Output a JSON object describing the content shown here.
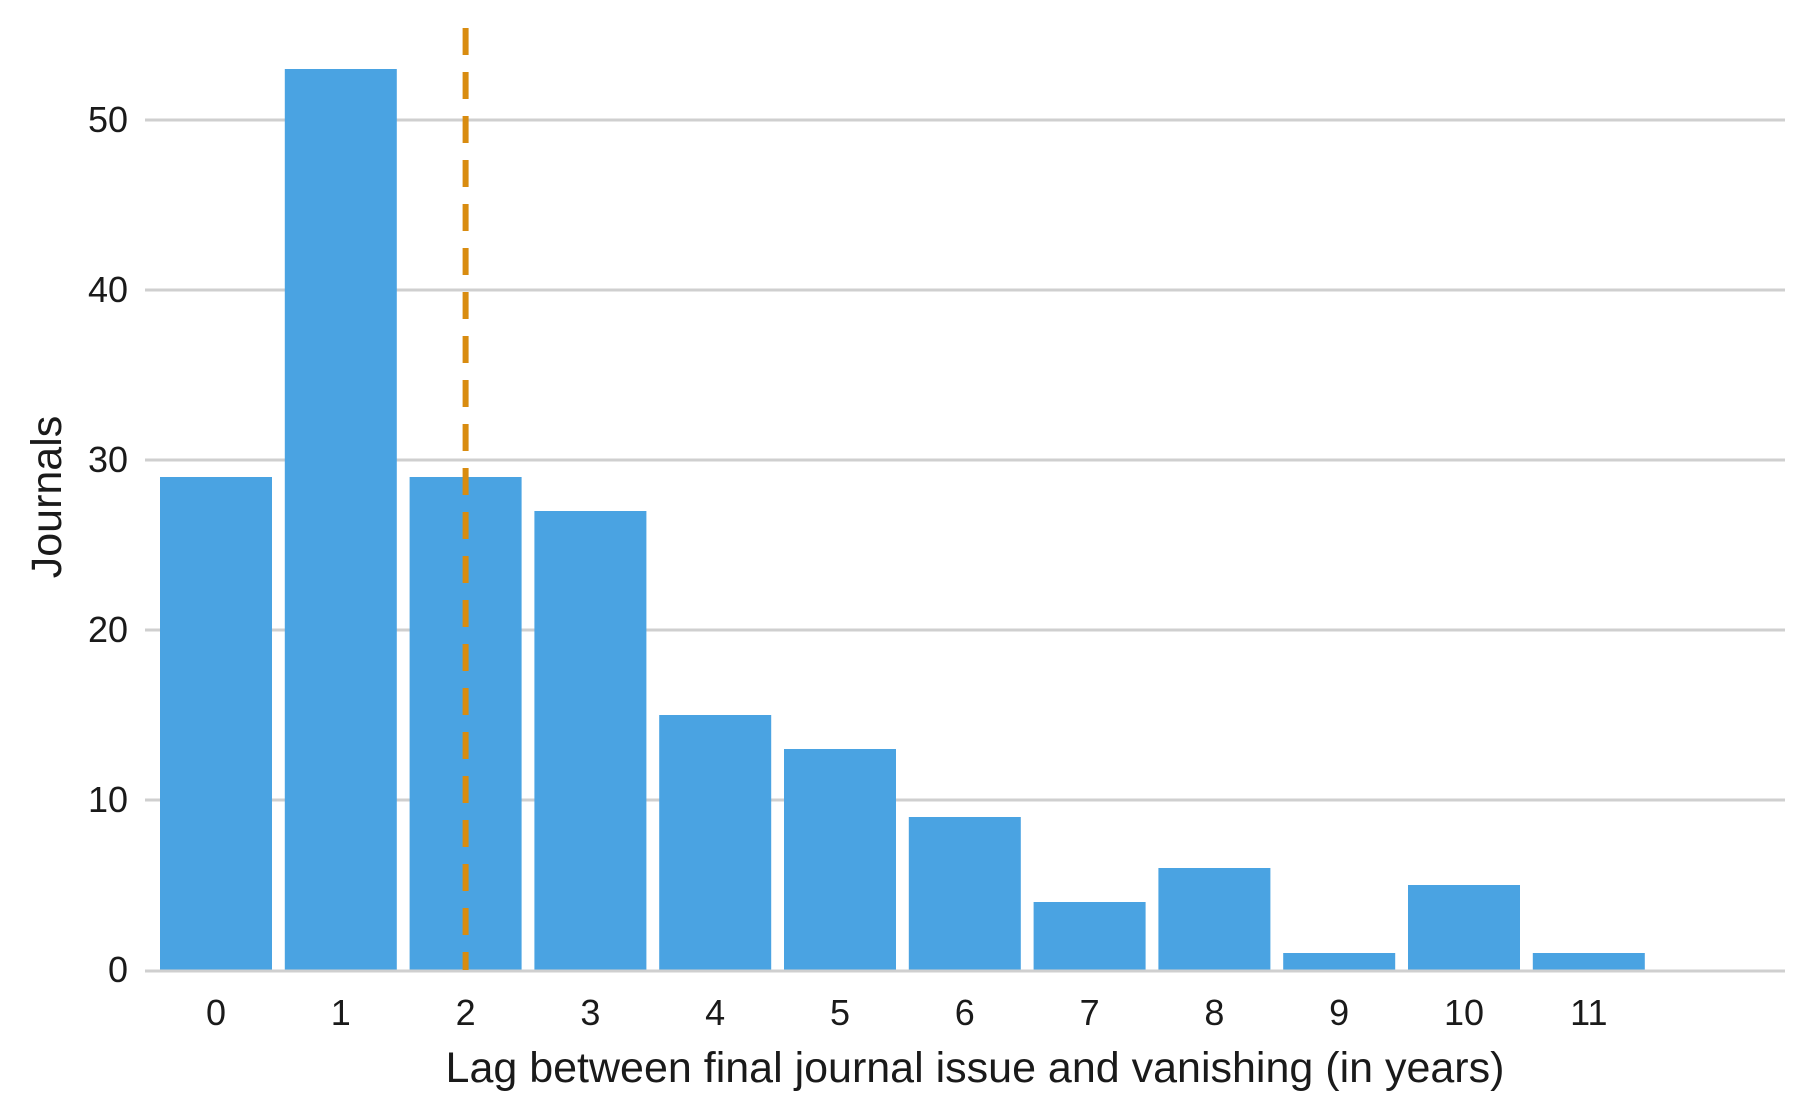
{
  "chart_data": {
    "type": "bar",
    "categories": [
      "0",
      "1",
      "2",
      "3",
      "4",
      "5",
      "6",
      "7",
      "8",
      "9",
      "10",
      "11"
    ],
    "values": [
      29,
      53,
      29,
      27,
      15,
      13,
      9,
      4,
      6,
      1,
      5,
      1
    ],
    "xlabel": "Lag between final journal issue and vanishing (in years)",
    "ylabel": "Journals",
    "ylim": [
      0,
      55
    ],
    "yticks": [
      "0",
      "10",
      "20",
      "30",
      "40",
      "50"
    ],
    "grid": "horizontal",
    "reference_line": {
      "x": 2,
      "style": "dashed"
    },
    "colors": {
      "bar": "#4aa3e2",
      "reference_line": "#d98c10",
      "grid": "#cfcfcf"
    }
  }
}
